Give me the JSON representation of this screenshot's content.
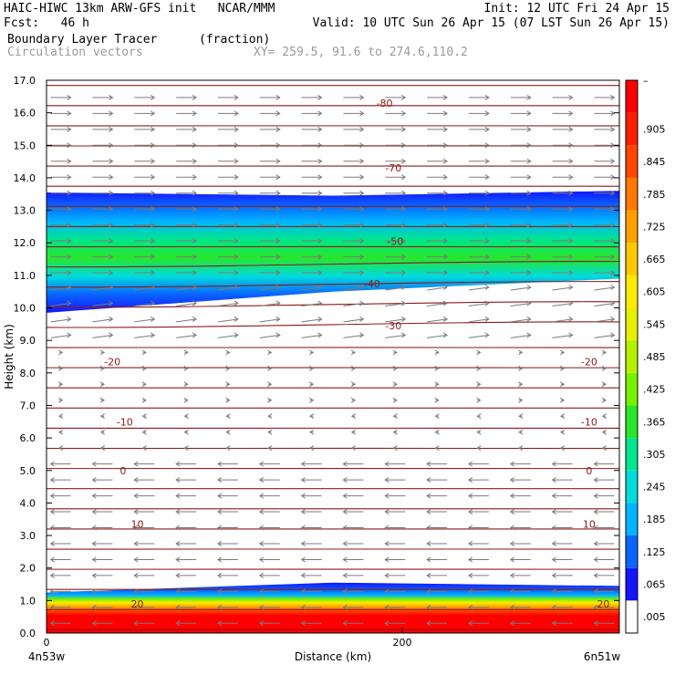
{
  "header": {
    "line1_left": "HAIC-HIWC 13km ARW-GFS init   NCAR/MMM",
    "line1_right": "Init: 12 UTC Fri 24 Apr 15",
    "line2_left": "Fcst:   46 h",
    "line2_right": "Valid: 10 UTC Sun 26 Apr 15 (07 LST Sun 26 Apr 15)",
    "field1_name": "Boundary Layer Tracer",
    "field1_units": "(fraction)",
    "field2_name": "Circulation vectors",
    "xy_label": "XY= 259.5, 91.6 to 274.6,110.2"
  },
  "colors": {
    "contour": "#8b1a1a",
    "vector": "#7a7a7a",
    "colorbar": [
      "#ffffff",
      "#1414ff",
      "#0a64ff",
      "#00b4ff",
      "#00dcdc",
      "#00e68c",
      "#28e628",
      "#78f000",
      "#b4f000",
      "#e6f000",
      "#ffeb00",
      "#ffc800",
      "#ffa000",
      "#ff7800",
      "#ff4600",
      "#ff1e00",
      "#ff0000"
    ]
  },
  "chart_data": {
    "type": "heatmap",
    "ylabel": "Height (km)",
    "xlabel": "Distance (km)",
    "x_left_label": "4n53w",
    "x_right_label": "6n51w",
    "xlim": [
      0,
      322
    ],
    "ylim": [
      0,
      17
    ],
    "x_ticks": [
      0,
      200
    ],
    "y_ticks": [
      "0.0",
      "1.0",
      "2.0",
      "3.0",
      "4.0",
      "5.0",
      "6.0",
      "7.0",
      "8.0",
      "9.0",
      "10.0",
      "11.0",
      "12.0",
      "13.0",
      "14.0",
      "15.0",
      "16.0",
      "17.0"
    ],
    "colorbar_labels": [
      "–",
      ".905",
      ".845",
      ".785",
      ".725",
      ".665",
      ".605",
      ".545",
      ".485",
      ".425",
      ".365",
      ".305",
      ".245",
      ".185",
      ".125",
      ".065",
      ".005"
    ],
    "contour_labels": [
      {
        "text": "-80",
        "x": 190,
        "y": 16.3
      },
      {
        "text": "-70",
        "x": 195,
        "y": 14.3
      },
      {
        "text": "-50",
        "x": 196,
        "y": 12.05
      },
      {
        "text": "-40",
        "x": 183,
        "y": 10.75
      },
      {
        "text": "-30",
        "x": 195,
        "y": 9.45
      },
      {
        "text": "-20",
        "x": 37,
        "y": 8.35
      },
      {
        "text": "-20",
        "x": 305,
        "y": 8.35
      },
      {
        "text": "-10",
        "x": 44,
        "y": 6.5
      },
      {
        "text": "-10",
        "x": 305,
        "y": 6.5
      },
      {
        "text": "0",
        "x": 43,
        "y": 5.0
      },
      {
        "text": "0",
        "x": 305,
        "y": 5.0
      },
      {
        "text": "10",
        "x": 51,
        "y": 3.35
      },
      {
        "text": "10",
        "x": 305,
        "y": 3.35
      },
      {
        "text": "20",
        "x": 51,
        "y": 0.9
      },
      {
        "text": "20",
        "x": 313,
        "y": 0.9
      }
    ],
    "upper_tracer_layer": {
      "top_km": [
        13.55,
        13.45,
        13.6
      ],
      "bottom_km": [
        9.85,
        10.5,
        10.9
      ],
      "peak_fraction": 0.27
    },
    "boundary_layer_tracer": {
      "top_km": [
        1.25,
        1.55,
        1.45
      ],
      "peak_fraction": 0.99
    }
  }
}
